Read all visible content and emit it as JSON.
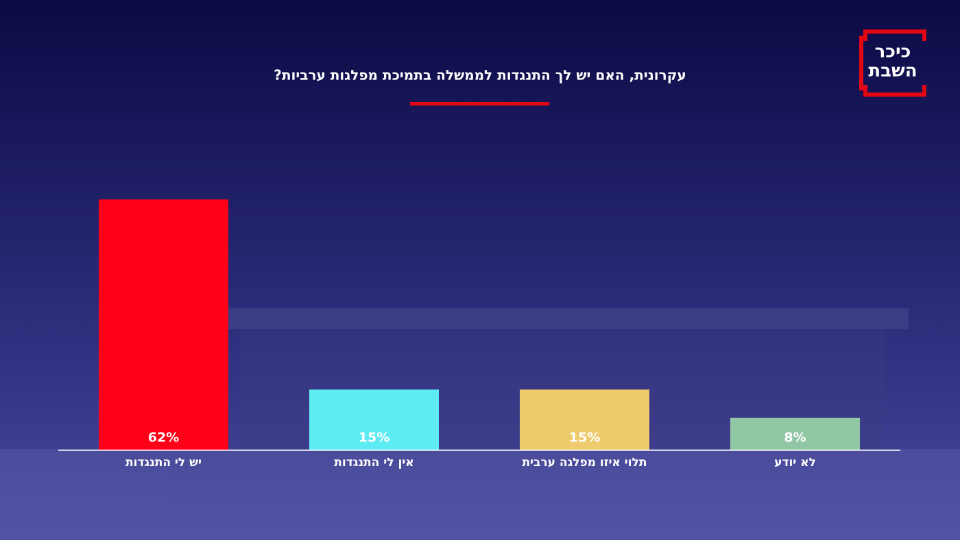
{
  "chart_data": {
    "type": "bar",
    "title": "עקרונית, האם יש לך התנגדות לממשלה בתמיכת מפלגות ערביות?",
    "logo": [
      "כיכר",
      "השבת"
    ],
    "categories": [
      "יש לי התנגדות",
      "אין לי התנגדות",
      "תלוי איזו מפלגה ערבית",
      "לא יודע"
    ],
    "values": [
      62,
      15,
      15,
      8
    ],
    "value_labels": [
      "62%",
      "15%",
      "15%",
      "8%"
    ],
    "colors": [
      "#ff0019",
      "#5eecf4",
      "#eecb6c",
      "#92c7a6"
    ]
  }
}
